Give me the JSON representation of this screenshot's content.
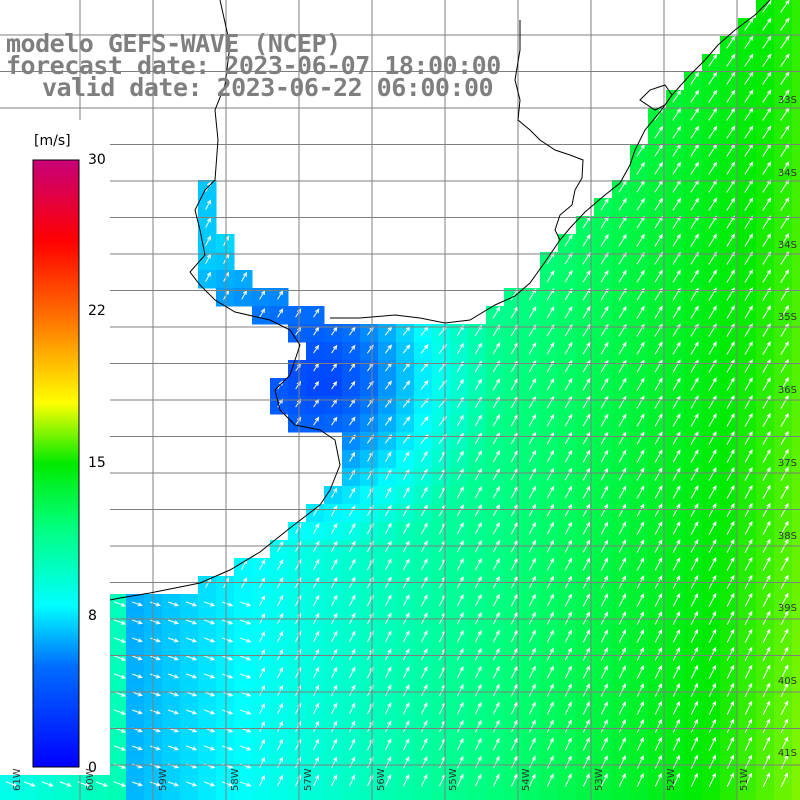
{
  "title": {
    "line1": "modelo GEFS-WAVE (NCEP)",
    "line2": "forecast date: 2023-06-07 18:00:00",
    "line3": "valid date: 2023-06-22 06:00:00"
  },
  "colorbar": {
    "unit": "[m/s]",
    "ticks": [
      "30",
      "22",
      "15",
      "8",
      "0"
    ],
    "colors": [
      "#0000ff",
      "#00aaff",
      "#00ffff",
      "#00ff00",
      "#ffff00",
      "#ff8800",
      "#ff0000",
      "#cc0077"
    ]
  },
  "lat_labels": [
    "33S",
    "34S",
    "35S",
    "36S",
    "37S",
    "38S",
    "39S",
    "40S",
    "41S"
  ],
  "lon_labels": [
    "61W",
    "60W",
    "59W",
    "58W",
    "57W",
    "56W",
    "55W",
    "54W",
    "53W",
    "52W",
    "51W"
  ],
  "colors": {
    "land": "#ffffff",
    "coast": "#000000",
    "grid": "#7f7f7f",
    "arrow": "#ffffff",
    "title_text": "#7f7f7f"
  }
}
